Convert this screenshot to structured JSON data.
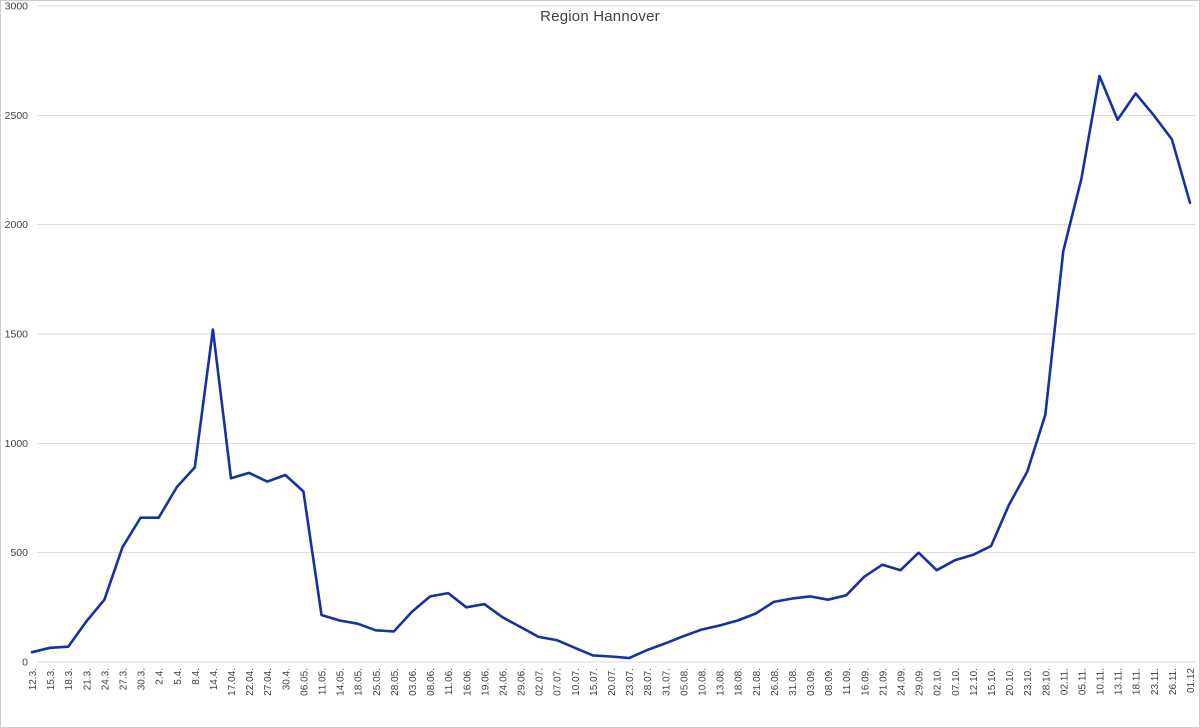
{
  "title": "Region Hannover",
  "chart_data": {
    "type": "line",
    "title": "Region Hannover",
    "xlabel": "",
    "ylabel": "",
    "ylim": [
      0,
      3000
    ],
    "y_ticks": [
      0,
      500,
      1000,
      1500,
      2000,
      2500,
      3000
    ],
    "grid": "horizontal",
    "legend": "none",
    "categories": [
      "12.3.",
      "15.3.",
      "18.3.",
      "21.3.",
      "24.3.",
      "27.3.",
      "30.3.",
      "2.4.",
      "5.4.",
      "8.4.",
      "14.4.",
      "17.04.",
      "22.04.",
      "27.04.",
      "30.4.",
      "06.05.",
      "11.05.",
      "14.05.",
      "18.05.",
      "25.05.",
      "28.05.",
      "03.06.",
      "08.06.",
      "11.06.",
      "16.06.",
      "19.06.",
      "24.06.",
      "29.06.",
      "02.07.",
      "07.07.",
      "10.07.",
      "15.07.",
      "20.07.",
      "23.07.",
      "28.07.",
      "31.07.",
      "05.08.",
      "10.08.",
      "13.08.",
      "18.08.",
      "21.08.",
      "26.08.",
      "31.08.",
      "03.09.",
      "08.09.",
      "11.09.",
      "16.09.",
      "21.09.",
      "24.09.",
      "29.09.",
      "02.10.",
      "07.10.",
      "12.10.",
      "15.10.",
      "20.10.",
      "23.10.",
      "28.10.",
      "02.11.",
      "05.11.",
      "10.11.",
      "13.11.",
      "18.11.",
      "23.11.",
      "26.11.",
      "01.12"
    ],
    "series": [
      {
        "name": "Region Hannover",
        "values": [
          45,
          65,
          70,
          185,
          285,
          525,
          660,
          660,
          800,
          890,
          1520,
          840,
          865,
          825,
          855,
          780,
          215,
          190,
          175,
          145,
          140,
          230,
          300,
          315,
          250,
          265,
          205,
          160,
          115,
          100,
          65,
          30,
          25,
          18,
          55,
          85,
          118,
          148,
          167,
          190,
          222,
          275,
          290,
          300,
          285,
          305,
          390,
          445,
          420,
          500,
          420,
          465,
          490,
          530,
          720,
          870,
          1130,
          1880,
          2210,
          2680,
          2480,
          2600,
          2500,
          2390,
          2100
        ]
      }
    ]
  },
  "style": {
    "line_color": "#16329E",
    "grid_color": "#D9D9D9",
    "axis_label_color": "#404040",
    "background_color": "#FFFFFF",
    "border_color": "#CDCDCD"
  }
}
